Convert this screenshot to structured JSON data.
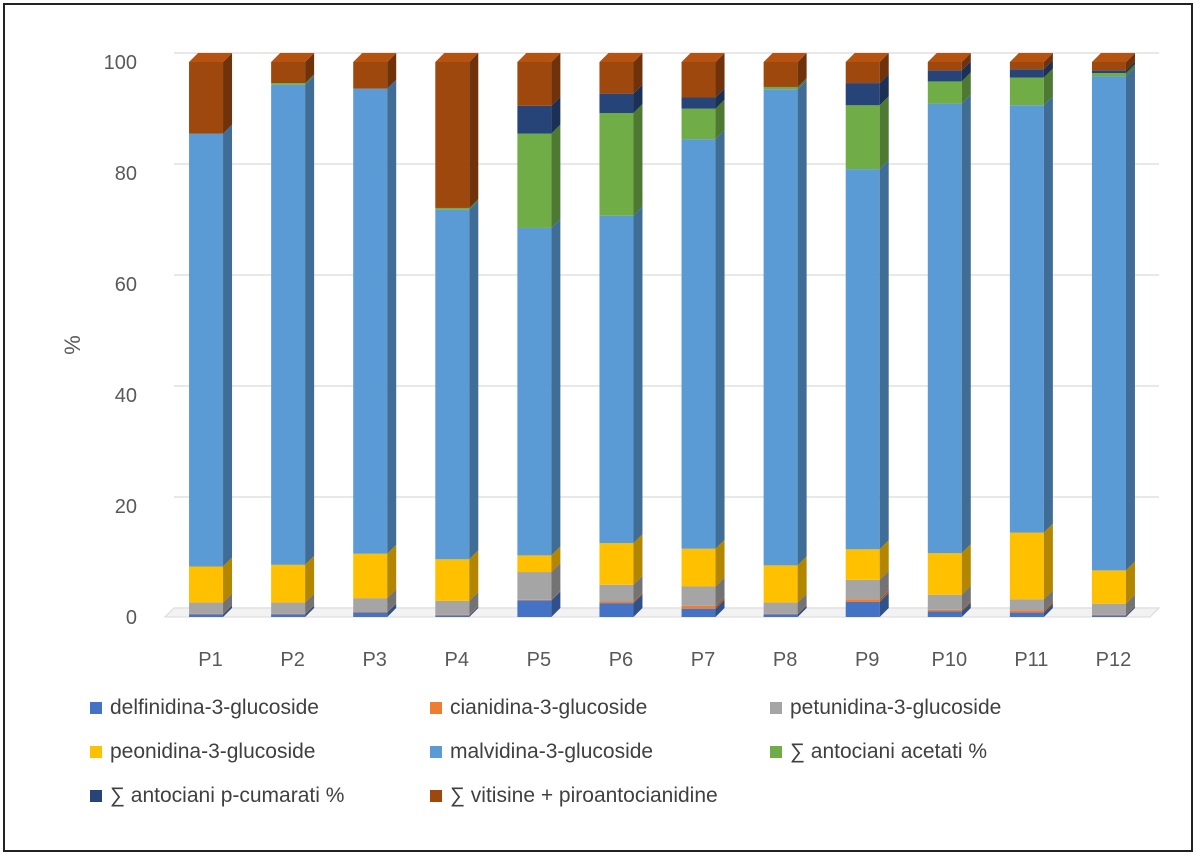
{
  "chart_data": {
    "type": "bar",
    "stacked": true,
    "style": "3d-column",
    "ylabel": "%",
    "ylim": [
      0,
      100
    ],
    "yticks": [
      0,
      20,
      40,
      60,
      80,
      100
    ],
    "grid": true,
    "legend_position": "bottom",
    "categories": [
      "P1",
      "P2",
      "P3",
      "P4",
      "P5",
      "P6",
      "P7",
      "P8",
      "P9",
      "P10",
      "P11",
      "P12"
    ],
    "series": [
      {
        "name": "delfinidina-3-glucoside",
        "color": "#4472c4",
        "values": [
          0.5,
          0.5,
          0.8,
          0.3,
          3.0,
          2.5,
          1.5,
          0.5,
          2.7,
          1.0,
          0.8,
          0.3
        ]
      },
      {
        "name": "cianidina-3-glucoside",
        "color": "#ed7d31",
        "values": [
          0.1,
          0.1,
          0.1,
          0.1,
          0.1,
          0.3,
          0.5,
          0.1,
          0.5,
          0.3,
          0.4,
          0.1
        ]
      },
      {
        "name": "petunidina-3-glucoside",
        "color": "#a5a5a5",
        "values": [
          2.0,
          2.0,
          2.5,
          2.5,
          5.0,
          3.0,
          3.5,
          2.0,
          3.5,
          2.7,
          2.0,
          2.0
        ]
      },
      {
        "name": "peonidina-3-glucoside",
        "color": "#ffc000",
        "values": [
          6.5,
          6.8,
          8.0,
          7.5,
          3.0,
          7.5,
          6.8,
          6.7,
          5.5,
          7.5,
          12.0,
          6.0
        ]
      },
      {
        "name": "malvidina-3-glucoside",
        "color": "#5b9bd5",
        "values": [
          78.0,
          86.5,
          83.8,
          63.0,
          59.0,
          59.0,
          73.8,
          85.8,
          68.5,
          81.0,
          77.0,
          89.0
        ]
      },
      {
        "name": "∑ antociani acetati %",
        "color": "#70ad47",
        "values": [
          0,
          0.3,
          0,
          0.3,
          17.0,
          18.5,
          5.5,
          0.4,
          11.5,
          4.0,
          5.0,
          0.6
        ]
      },
      {
        "name": "∑ antociani p-cumarati %",
        "color": "#264478",
        "values": [
          0,
          0,
          0,
          0,
          5.0,
          3.5,
          2.0,
          0,
          4.0,
          2.0,
          1.5,
          0.5
        ]
      },
      {
        "name": "∑  vitisine + piroantocianidine",
        "color": "#9e480e",
        "values": [
          12.9,
          3.8,
          4.8,
          26.3,
          7.9,
          5.7,
          6.4,
          4.5,
          3.8,
          1.5,
          1.3,
          1.5
        ]
      }
    ]
  },
  "colors": {
    "frame_border": "#222222",
    "gridline": "#d9d9d9",
    "axis_text": "#595959",
    "legend_text": "#404040"
  }
}
